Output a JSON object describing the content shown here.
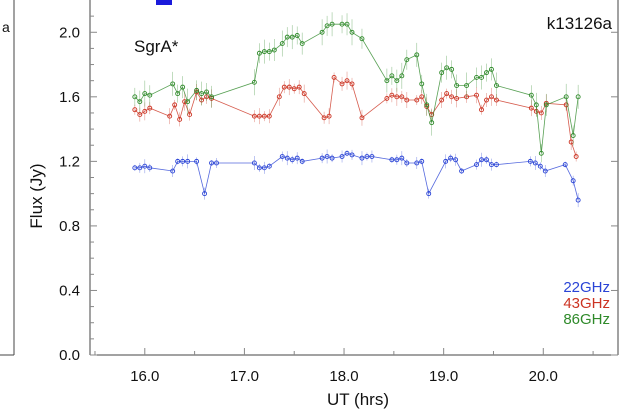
{
  "left_panel": {
    "fragment_text": "a"
  },
  "colors": {
    "axis": "#444444",
    "tick": "#888888",
    "edge_bar": "#1a1adb"
  },
  "chart_data": {
    "type": "scatter",
    "title": "",
    "xlabel": "UT (hrs)",
    "ylabel": "Flux (Jy)",
    "xlim": [
      15.45,
      20.75
    ],
    "ylim": [
      0.0,
      2.2
    ],
    "xticks": [
      16.0,
      17.0,
      18.0,
      19.0,
      20.0
    ],
    "xtick_labels": [
      "16.0",
      "17.0",
      "18.0",
      "19.0",
      "20.0"
    ],
    "yticks": [
      0.0,
      0.4,
      0.8,
      1.2,
      1.6,
      2.0
    ],
    "ytick_labels": [
      "0.0",
      "0.4",
      "0.8",
      "1.2",
      "1.6",
      "2.0"
    ],
    "grid": false,
    "legend_position": "bottom-right",
    "annotations": {
      "source": "SgrA*",
      "experiment": "k13126a"
    },
    "series": [
      {
        "name": "22GHz",
        "color": "#2a44d6",
        "x": [
          15.9,
          15.95,
          16.0,
          16.05,
          16.28,
          16.33,
          16.38,
          16.43,
          16.52,
          16.6,
          16.67,
          16.72,
          17.1,
          17.15,
          17.2,
          17.25,
          17.38,
          17.43,
          17.48,
          17.53,
          17.58,
          17.78,
          17.83,
          17.88,
          17.98,
          18.03,
          18.08,
          18.18,
          18.23,
          18.28,
          18.48,
          18.53,
          18.58,
          18.63,
          18.73,
          18.78,
          18.85,
          19.02,
          19.07,
          19.12,
          19.18,
          19.33,
          19.38,
          19.43,
          19.48,
          19.53,
          19.87,
          19.92,
          19.97,
          20.02,
          20.22,
          20.3,
          20.35
        ],
        "y": [
          1.16,
          1.16,
          1.17,
          1.16,
          1.14,
          1.2,
          1.2,
          1.2,
          1.2,
          1.0,
          1.19,
          1.19,
          1.19,
          1.16,
          1.16,
          1.17,
          1.23,
          1.22,
          1.21,
          1.22,
          1.2,
          1.22,
          1.23,
          1.22,
          1.23,
          1.25,
          1.24,
          1.22,
          1.23,
          1.23,
          1.21,
          1.21,
          1.22,
          1.19,
          1.19,
          1.2,
          1.0,
          1.2,
          1.22,
          1.21,
          1.14,
          1.18,
          1.21,
          1.21,
          1.18,
          1.18,
          1.2,
          1.19,
          1.17,
          1.14,
          1.18,
          1.08,
          0.96
        ]
      },
      {
        "name": "43GHz",
        "color": "#cc3322",
        "x": [
          15.9,
          15.95,
          16.0,
          16.05,
          16.25,
          16.3,
          16.35,
          16.4,
          16.45,
          16.52,
          16.57,
          16.62,
          16.67,
          17.1,
          17.15,
          17.2,
          17.25,
          17.35,
          17.4,
          17.45,
          17.5,
          17.55,
          17.6,
          17.8,
          17.85,
          17.9,
          17.98,
          18.03,
          18.08,
          18.18,
          18.43,
          18.48,
          18.53,
          18.58,
          18.63,
          18.73,
          18.78,
          18.83,
          18.88,
          18.98,
          19.03,
          19.08,
          19.13,
          19.23,
          19.33,
          19.38,
          19.43,
          19.48,
          19.53,
          19.88,
          19.93,
          19.98,
          20.03,
          20.23,
          20.28,
          20.33
        ],
        "y": [
          1.52,
          1.49,
          1.51,
          1.53,
          1.48,
          1.55,
          1.46,
          1.57,
          1.49,
          1.63,
          1.58,
          1.6,
          1.59,
          1.48,
          1.48,
          1.48,
          1.48,
          1.6,
          1.66,
          1.66,
          1.65,
          1.66,
          1.62,
          1.47,
          1.48,
          1.72,
          1.68,
          1.7,
          1.68,
          1.47,
          1.59,
          1.61,
          1.6,
          1.6,
          1.58,
          1.58,
          1.6,
          1.54,
          1.49,
          1.58,
          1.62,
          1.6,
          1.59,
          1.6,
          1.61,
          1.52,
          1.58,
          1.6,
          1.58,
          1.53,
          1.51,
          1.5,
          1.56,
          1.55,
          1.32,
          1.23
        ]
      },
      {
        "name": "86GHz",
        "color": "#2f8a2a",
        "x": [
          15.9,
          15.95,
          16.0,
          16.05,
          16.28,
          16.33,
          16.38,
          16.43,
          16.52,
          16.57,
          16.62,
          16.67,
          17.1,
          17.15,
          17.2,
          17.25,
          17.3,
          17.38,
          17.43,
          17.48,
          17.53,
          17.58,
          17.78,
          17.83,
          17.88,
          17.98,
          18.03,
          18.08,
          18.18,
          18.43,
          18.48,
          18.53,
          18.58,
          18.63,
          18.73,
          18.78,
          18.83,
          18.88,
          18.98,
          19.03,
          19.08,
          19.13,
          19.23,
          19.33,
          19.38,
          19.43,
          19.48,
          19.53,
          19.88,
          19.93,
          19.98,
          20.03,
          20.23,
          20.3,
          20.35
        ],
        "y": [
          1.6,
          1.57,
          1.62,
          1.61,
          1.68,
          1.62,
          1.66,
          1.57,
          1.64,
          1.62,
          1.63,
          1.6,
          1.69,
          1.87,
          1.88,
          1.88,
          1.89,
          1.93,
          1.97,
          1.97,
          1.98,
          1.93,
          2.0,
          2.04,
          2.05,
          2.05,
          2.05,
          2.0,
          1.96,
          1.7,
          1.73,
          1.7,
          1.73,
          1.83,
          1.86,
          1.68,
          1.55,
          1.44,
          1.75,
          1.78,
          1.77,
          1.67,
          1.67,
          1.72,
          1.72,
          1.75,
          1.77,
          1.67,
          1.61,
          1.55,
          1.25,
          1.55,
          1.6,
          1.36,
          1.6
        ]
      }
    ]
  }
}
